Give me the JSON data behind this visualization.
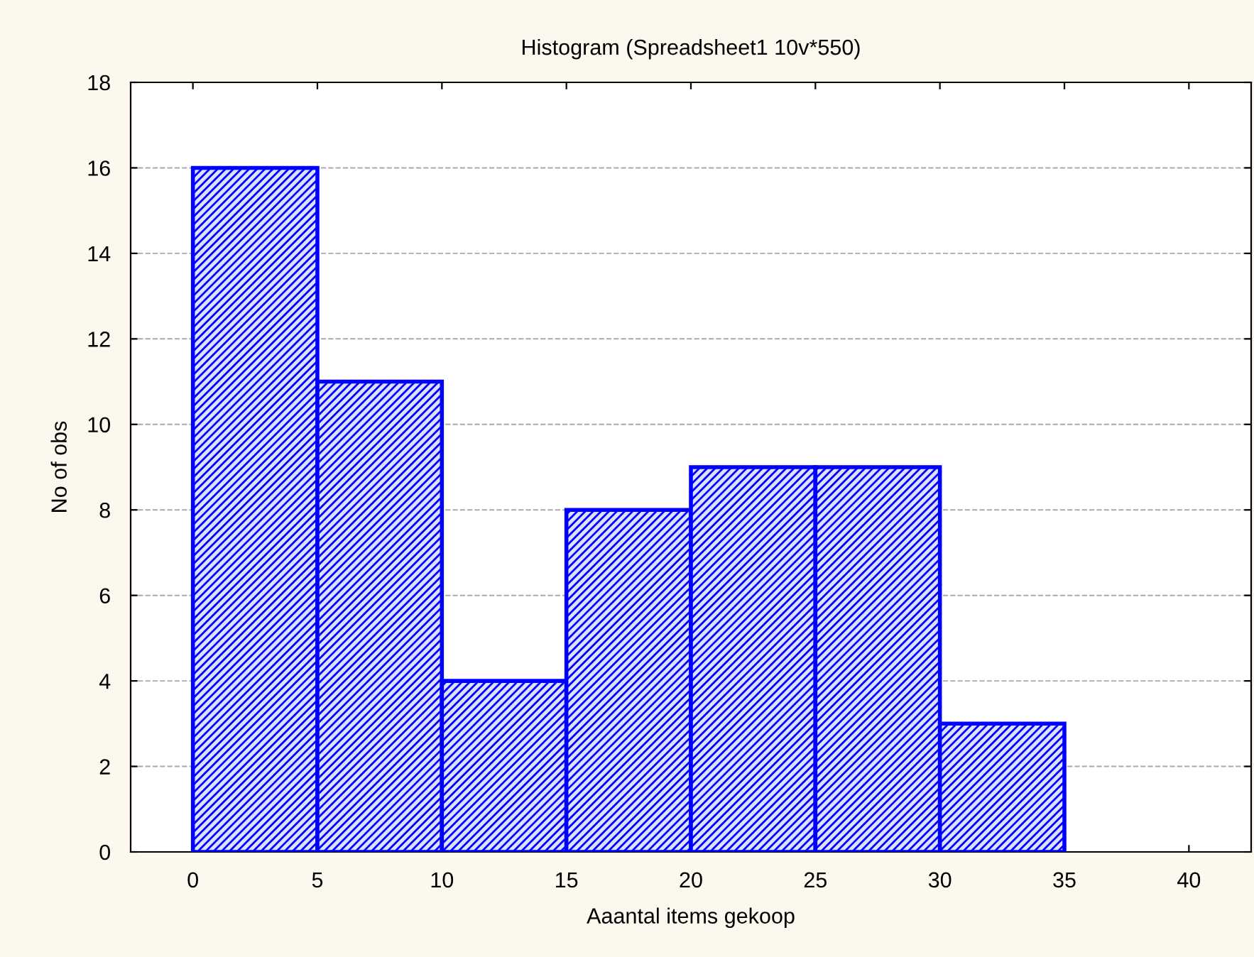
{
  "chart_data": {
    "type": "histogram",
    "title": "Histogram (Spreadsheet1 10v*550)",
    "xlabel": "Aaantal items gekoop",
    "ylabel": "No of obs",
    "bins": [
      0,
      5,
      10,
      15,
      20,
      25,
      30,
      35
    ],
    "values": [
      16,
      11,
      4,
      8,
      9,
      9,
      3
    ],
    "color": "#0000ff",
    "xlim": [
      -2.5,
      42.5
    ],
    "xticks": [
      0,
      5,
      10,
      15,
      20,
      25,
      30,
      35,
      40
    ],
    "ylim": [
      0,
      18
    ],
    "yticks": [
      0,
      2,
      4,
      6,
      8,
      10,
      12,
      14,
      16,
      18
    ],
    "grid": "y"
  }
}
